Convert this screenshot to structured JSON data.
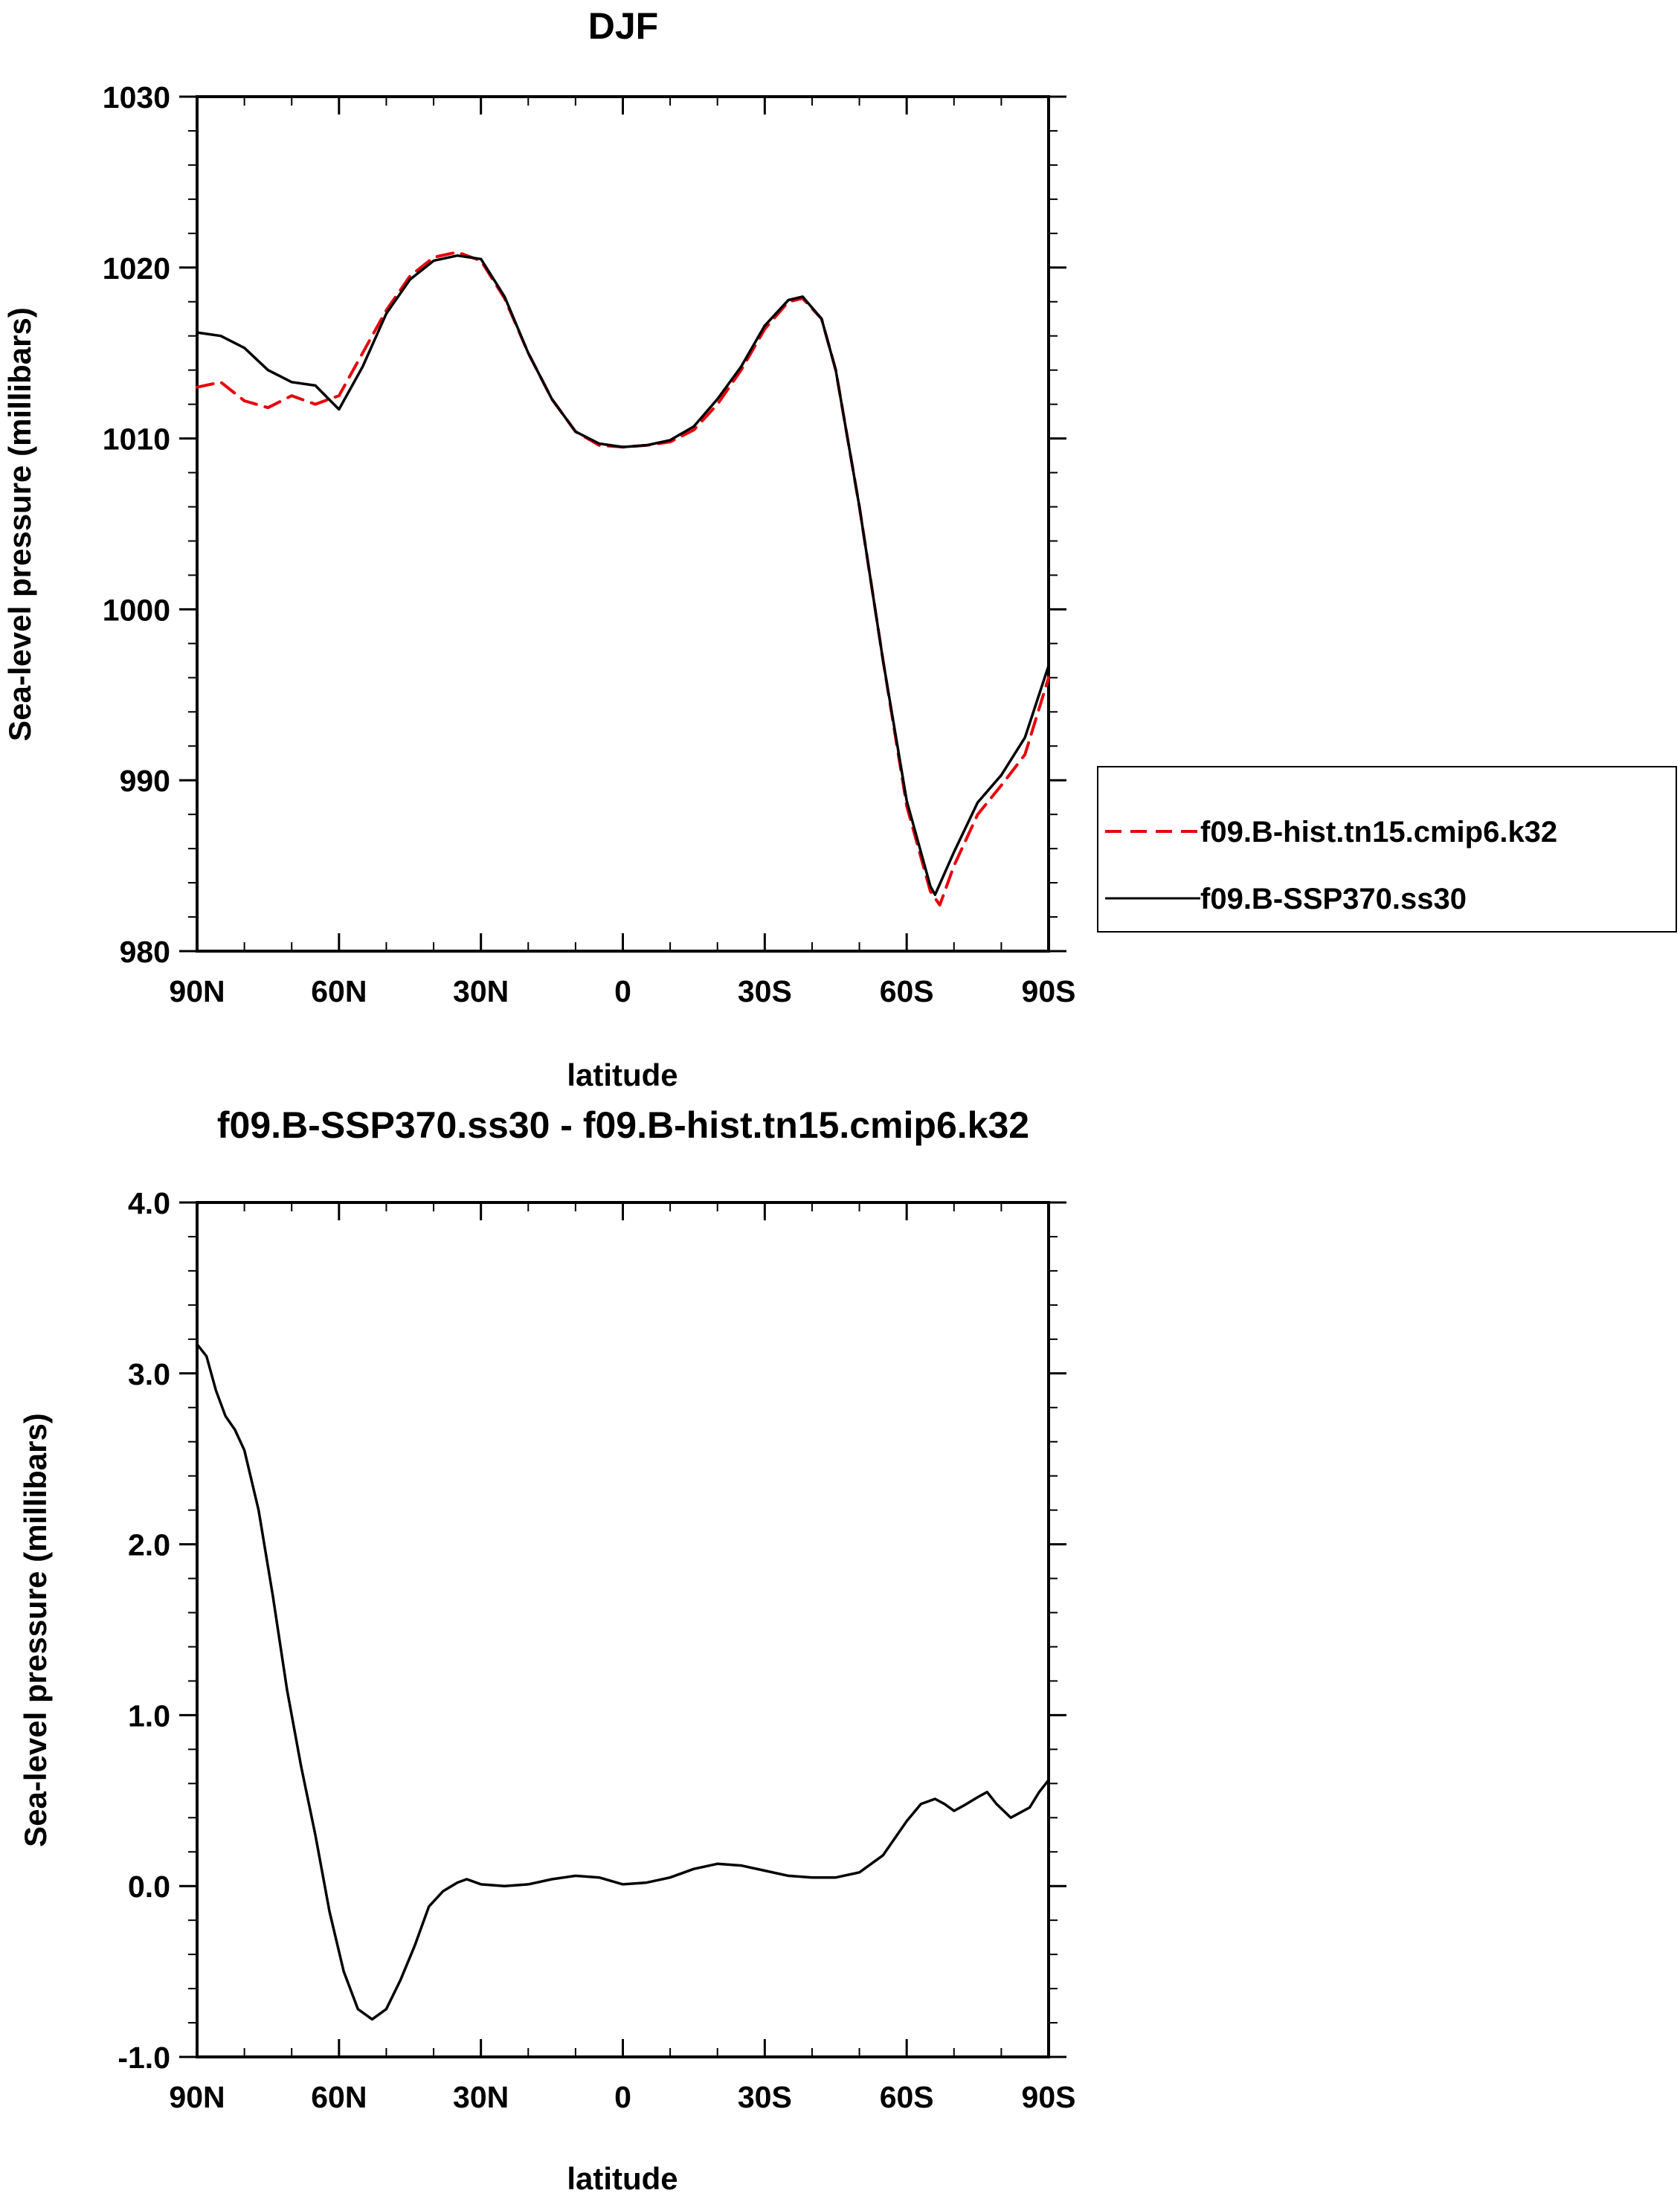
{
  "chart_data": [
    {
      "type": "line",
      "title": "DJF",
      "xlabel": "latitude",
      "ylabel": "Sea-level pressure (millibars)",
      "xlim": [
        90,
        -90
      ],
      "ylim": [
        980,
        1030
      ],
      "x_ticks": [
        {
          "value": 90,
          "label": "90N"
        },
        {
          "value": 60,
          "label": "60N"
        },
        {
          "value": 30,
          "label": "30N"
        },
        {
          "value": 0,
          "label": "0"
        },
        {
          "value": -30,
          "label": "30S"
        },
        {
          "value": -60,
          "label": "60S"
        },
        {
          "value": -90,
          "label": "90S"
        }
      ],
      "y_ticks": [
        {
          "value": 980,
          "label": "980"
        },
        {
          "value": 990,
          "label": "990"
        },
        {
          "value": 1000,
          "label": "1000"
        },
        {
          "value": 1010,
          "label": "1010"
        },
        {
          "value": 1020,
          "label": "1020"
        },
        {
          "value": 1030,
          "label": "1030"
        }
      ],
      "legend_position": "right",
      "series": [
        {
          "name": "f09.B-hist.tn15.cmip6.k32",
          "color": "#e8000b",
          "style": "dashed",
          "points": [
            [
              90,
              1013.0
            ],
            [
              85,
              1013.3
            ],
            [
              80,
              1012.2
            ],
            [
              75,
              1011.8
            ],
            [
              70,
              1012.5
            ],
            [
              65,
              1012.0
            ],
            [
              60,
              1012.5
            ],
            [
              55,
              1015.0
            ],
            [
              50,
              1017.5
            ],
            [
              45,
              1019.5
            ],
            [
              40,
              1020.6
            ],
            [
              35,
              1020.9
            ],
            [
              30,
              1020.4
            ],
            [
              25,
              1018.2
            ],
            [
              20,
              1015.0
            ],
            [
              15,
              1012.3
            ],
            [
              10,
              1010.4
            ],
            [
              5,
              1009.6
            ],
            [
              0,
              1009.5
            ],
            [
              -5,
              1009.6
            ],
            [
              -10,
              1009.8
            ],
            [
              -15,
              1010.5
            ],
            [
              -20,
              1012.0
            ],
            [
              -25,
              1014.0
            ],
            [
              -30,
              1016.4
            ],
            [
              -35,
              1018.0
            ],
            [
              -38,
              1018.2
            ],
            [
              -42,
              1017.0
            ],
            [
              -45,
              1014.0
            ],
            [
              -50,
              1006.0
            ],
            [
              -55,
              997.0
            ],
            [
              -60,
              988.5
            ],
            [
              -65,
              983.5
            ],
            [
              -67,
              982.7
            ],
            [
              -70,
              985.0
            ],
            [
              -75,
              988.0
            ],
            [
              -80,
              989.7
            ],
            [
              -85,
              991.5
            ],
            [
              -90,
              996.0
            ]
          ]
        },
        {
          "name": "f09.B-SSP370.ss30",
          "color": "#000000",
          "style": "solid",
          "points": [
            [
              90,
              1016.2
            ],
            [
              85,
              1016.0
            ],
            [
              80,
              1015.3
            ],
            [
              75,
              1014.0
            ],
            [
              70,
              1013.3
            ],
            [
              65,
              1013.1
            ],
            [
              60,
              1011.7
            ],
            [
              55,
              1014.2
            ],
            [
              50,
              1017.3
            ],
            [
              45,
              1019.3
            ],
            [
              40,
              1020.4
            ],
            [
              35,
              1020.7
            ],
            [
              30,
              1020.5
            ],
            [
              25,
              1018.3
            ],
            [
              20,
              1015.0
            ],
            [
              15,
              1012.3
            ],
            [
              10,
              1010.4
            ],
            [
              5,
              1009.7
            ],
            [
              0,
              1009.5
            ],
            [
              -5,
              1009.6
            ],
            [
              -10,
              1009.9
            ],
            [
              -15,
              1010.7
            ],
            [
              -20,
              1012.3
            ],
            [
              -25,
              1014.2
            ],
            [
              -30,
              1016.6
            ],
            [
              -35,
              1018.1
            ],
            [
              -38,
              1018.3
            ],
            [
              -42,
              1017.0
            ],
            [
              -45,
              1014.0
            ],
            [
              -50,
              1006.0
            ],
            [
              -55,
              997.0
            ],
            [
              -60,
              988.8
            ],
            [
              -65,
              983.8
            ],
            [
              -66,
              983.3
            ],
            [
              -70,
              985.8
            ],
            [
              -75,
              988.7
            ],
            [
              -80,
              990.3
            ],
            [
              -85,
              992.5
            ],
            [
              -90,
              996.7
            ]
          ]
        }
      ]
    },
    {
      "type": "line",
      "title": "f09.B-SSP370.ss30 - f09.B-hist.tn15.cmip6.k32",
      "xlabel": "latitude",
      "ylabel": "Sea-level pressure (millibars)",
      "xlim": [
        90,
        -90
      ],
      "ylim": [
        -1.0,
        4.0
      ],
      "x_ticks": [
        {
          "value": 90,
          "label": "90N"
        },
        {
          "value": 60,
          "label": "60N"
        },
        {
          "value": 30,
          "label": "30N"
        },
        {
          "value": 0,
          "label": "0"
        },
        {
          "value": -30,
          "label": "30S"
        },
        {
          "value": -60,
          "label": "60S"
        },
        {
          "value": -90,
          "label": "90S"
        }
      ],
      "y_ticks": [
        {
          "value": -1.0,
          "label": "-1.0"
        },
        {
          "value": 0.0,
          "label": "0.0"
        },
        {
          "value": 1.0,
          "label": "1.0"
        },
        {
          "value": 2.0,
          "label": "2.0"
        },
        {
          "value": 3.0,
          "label": "3.0"
        },
        {
          "value": 4.0,
          "label": "4.0"
        }
      ],
      "series": [
        {
          "color": "#000000",
          "style": "solid",
          "points": [
            [
              90,
              3.17
            ],
            [
              88,
              3.1
            ],
            [
              86,
              2.9
            ],
            [
              84,
              2.75
            ],
            [
              82,
              2.67
            ],
            [
              80,
              2.55
            ],
            [
              77,
              2.2
            ],
            [
              74,
              1.7
            ],
            [
              71,
              1.15
            ],
            [
              68,
              0.7
            ],
            [
              65,
              0.3
            ],
            [
              62,
              -0.15
            ],
            [
              59,
              -0.5
            ],
            [
              56,
              -0.72
            ],
            [
              53,
              -0.78
            ],
            [
              50,
              -0.72
            ],
            [
              47,
              -0.55
            ],
            [
              44,
              -0.35
            ],
            [
              41,
              -0.12
            ],
            [
              38,
              -0.03
            ],
            [
              35,
              0.02
            ],
            [
              33,
              0.04
            ],
            [
              30,
              0.01
            ],
            [
              25,
              0.0
            ],
            [
              20,
              0.01
            ],
            [
              15,
              0.04
            ],
            [
              10,
              0.06
            ],
            [
              5,
              0.05
            ],
            [
              0,
              0.01
            ],
            [
              -5,
              0.02
            ],
            [
              -10,
              0.05
            ],
            [
              -15,
              0.1
            ],
            [
              -20,
              0.13
            ],
            [
              -25,
              0.12
            ],
            [
              -30,
              0.09
            ],
            [
              -35,
              0.06
            ],
            [
              -40,
              0.05
            ],
            [
              -45,
              0.05
            ],
            [
              -50,
              0.08
            ],
            [
              -55,
              0.18
            ],
            [
              -60,
              0.38
            ],
            [
              -63,
              0.48
            ],
            [
              -66,
              0.51
            ],
            [
              -68,
              0.48
            ],
            [
              -70,
              0.44
            ],
            [
              -72,
              0.47
            ],
            [
              -75,
              0.52
            ],
            [
              -77,
              0.55
            ],
            [
              -79,
              0.48
            ],
            [
              -82,
              0.4
            ],
            [
              -84,
              0.43
            ],
            [
              -86,
              0.46
            ],
            [
              -88,
              0.55
            ],
            [
              -90,
              0.62
            ]
          ]
        }
      ]
    }
  ]
}
